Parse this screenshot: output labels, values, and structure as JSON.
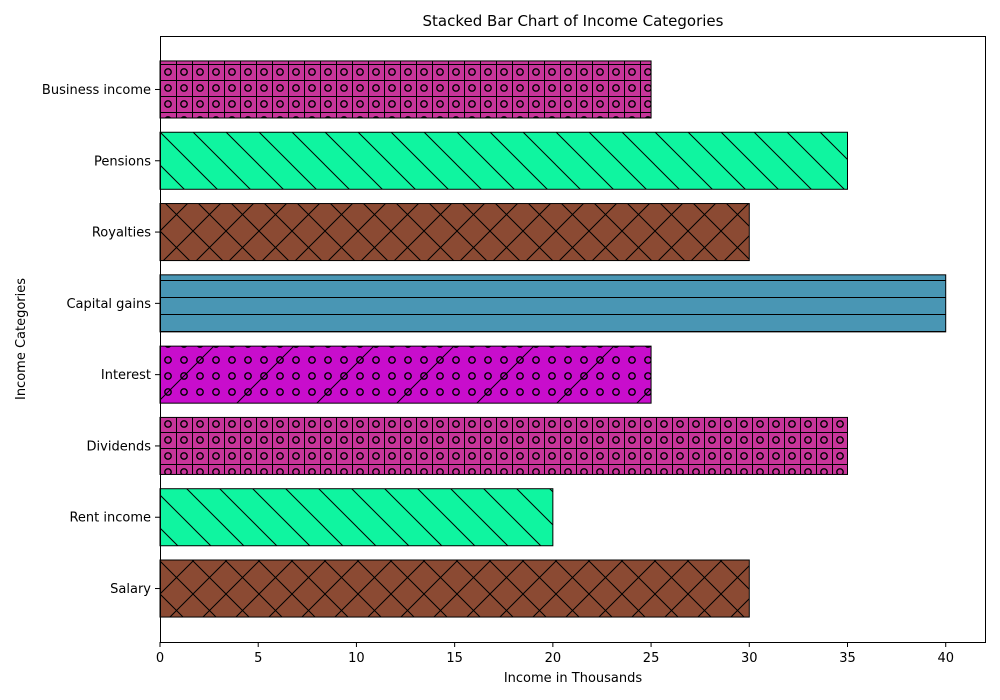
{
  "chart_data": {
    "type": "bar",
    "orientation": "horizontal",
    "title": "Stacked Bar Chart of Income Categories",
    "xlabel": "Income in Thousands",
    "ylabel": "Income Categories",
    "xlim": [
      0,
      42
    ],
    "xticks": [
      0,
      5,
      10,
      15,
      20,
      25,
      30,
      35,
      40
    ],
    "grid": false,
    "categories": [
      "Salary",
      "Rent income",
      "Dividends",
      "Interest",
      "Capital gains",
      "Royalties",
      "Pensions",
      "Business income"
    ],
    "values": [
      30,
      20,
      35,
      25,
      40,
      30,
      35,
      25
    ],
    "bar_styles": [
      {
        "color": "#8b4a33",
        "hatch": "crosshatch"
      },
      {
        "color": "#0ff5a0",
        "hatch": "backslash"
      },
      {
        "color": "#c8359a",
        "hatch": "grid-circles"
      },
      {
        "color": "#c80dcc",
        "hatch": "slash-circles"
      },
      {
        "color": "#4996b4",
        "hatch": "horizontal"
      },
      {
        "color": "#8b4a33",
        "hatch": "crosshatch"
      },
      {
        "color": "#0ff5a0",
        "hatch": "backslash"
      },
      {
        "color": "#c8359a",
        "hatch": "grid-circles"
      }
    ]
  }
}
